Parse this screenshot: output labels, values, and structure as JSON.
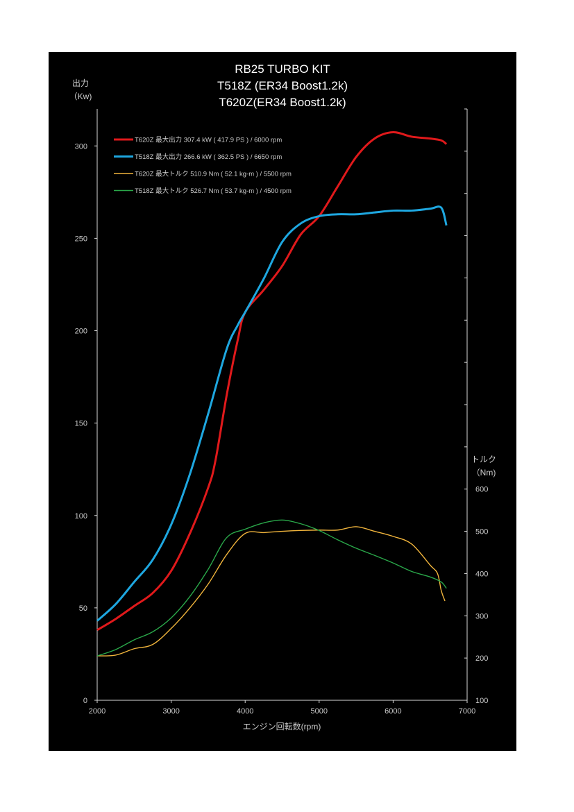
{
  "chart_data": {
    "type": "line",
    "title": [
      "RB25 TURBO KIT",
      "T518Z (ER34 Boost1.2k)",
      "T620Z(ER34 Boost1.2k)"
    ],
    "xlabel": "エンジン回転数(rpm)",
    "ylabel_left": [
      "出力",
      "（Kw)"
    ],
    "ylabel_right": [
      "トルク",
      "（Nm)"
    ],
    "xlim": [
      2000,
      7000
    ],
    "ylim_left": [
      0,
      320
    ],
    "ylim_right": [
      100,
      1500
    ],
    "x_ticks": [
      "2000",
      "3000",
      "4000",
      "5000",
      "6000",
      "7000"
    ],
    "left_ticks": [
      "0",
      "50",
      "100",
      "150",
      "200",
      "250",
      "300"
    ],
    "right_ticks": [
      "100",
      "200",
      "300",
      "400",
      "500",
      "600"
    ],
    "grid": false,
    "legend_position": "top-left",
    "series": [
      {
        "name": "T620Z 最大出力 307.4 kW ( 417.9 PS ) / 6000 rpm",
        "axis": "left",
        "color": "#e0191b",
        "width": 3,
        "x": [
          2000,
          2250,
          2500,
          2750,
          3000,
          3250,
          3500,
          3600,
          3750,
          3900,
          4000,
          4250,
          4500,
          4750,
          5000,
          5250,
          5500,
          5750,
          6000,
          6250,
          6500,
          6650,
          6720
        ],
        "values": [
          38,
          44,
          51,
          58,
          70,
          90,
          115,
          130,
          165,
          195,
          210,
          222,
          235,
          252,
          262,
          278,
          294,
          304,
          307.4,
          305,
          304,
          303,
          301
        ]
      },
      {
        "name": "T518Z 最大出力 266.6 kW ( 362.5 PS ) / 6650 rpm",
        "axis": "left",
        "color": "#1ea7e0",
        "width": 3,
        "x": [
          2000,
          2250,
          2500,
          2750,
          3000,
          3250,
          3500,
          3750,
          3900,
          4000,
          4250,
          4500,
          4750,
          5000,
          5250,
          5500,
          5750,
          6000,
          6250,
          6500,
          6650,
          6720
        ],
        "values": [
          43,
          52,
          64,
          76,
          95,
          122,
          155,
          190,
          203,
          210,
          228,
          248,
          258,
          262,
          263,
          263,
          264,
          265,
          265,
          266,
          266.6,
          257
        ]
      },
      {
        "name": "T620Z 最大トルク 510.9 Nm ( 52.1 kg-m ) / 5500 rpm",
        "axis": "right",
        "color": "#f0b43c",
        "width": 1.4,
        "x": [
          2000,
          2250,
          2500,
          2750,
          3000,
          3250,
          3500,
          3750,
          4000,
          4250,
          4500,
          4750,
          5000,
          5250,
          5500,
          5750,
          6000,
          6250,
          6500,
          6600,
          6650,
          6700
        ],
        "values": [
          205,
          207,
          222,
          232,
          270,
          318,
          375,
          445,
          495,
          497,
          500,
          502,
          503,
          503,
          510.9,
          500,
          488,
          470,
          420,
          400,
          360,
          335
        ]
      },
      {
        "name": "T518Z 最大トルク 526.7 Nm ( 53.7 kg-m ) / 4500 rpm",
        "axis": "right",
        "color": "#2aa84a",
        "width": 1.4,
        "x": [
          2000,
          2250,
          2500,
          2750,
          3000,
          3250,
          3500,
          3750,
          4000,
          4250,
          4500,
          4750,
          5000,
          5250,
          5500,
          5750,
          6000,
          6250,
          6500,
          6650,
          6720
        ],
        "values": [
          205,
          220,
          243,
          262,
          295,
          345,
          410,
          485,
          505,
          520,
          526.7,
          518,
          502,
          480,
          460,
          443,
          425,
          405,
          392,
          380,
          365
        ]
      }
    ]
  }
}
